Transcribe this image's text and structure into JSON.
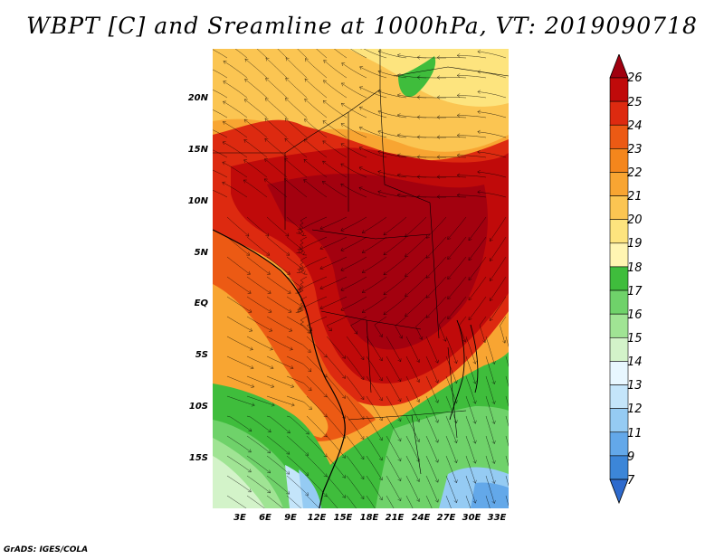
{
  "title": "WBPT [C] and Sreamline at 1000hPa, VT: 2019090718",
  "footer": "GrADS: IGES/COLA",
  "map": {
    "lat_labels": [
      "20N",
      "15N",
      "10N",
      "5N",
      "EQ",
      "5S",
      "10S",
      "15S"
    ],
    "lon_labels": [
      "3E",
      "6E",
      "9E",
      "12E",
      "15E",
      "18E",
      "21E",
      "24E",
      "27E",
      "30E",
      "33E"
    ]
  },
  "colorbar": {
    "labels": [
      "26",
      "25",
      "24",
      "23",
      "22",
      "21",
      "20",
      "19",
      "18",
      "17",
      "16",
      "15",
      "14",
      "13",
      "12",
      "11",
      "9",
      "7"
    ],
    "colors": [
      "#a0000f",
      "#c00a0a",
      "#dd2a10",
      "#ec5a14",
      "#f4861c",
      "#f8a532",
      "#fbc552",
      "#fde47e",
      "#fff5b2",
      "#3fbd3c",
      "#6fd26a",
      "#a0e494",
      "#d3f3c9",
      "#e8f7ff",
      "#c4e5fa",
      "#95cbf3",
      "#63a8e9",
      "#3c86d8",
      "#2e6acd"
    ]
  }
}
